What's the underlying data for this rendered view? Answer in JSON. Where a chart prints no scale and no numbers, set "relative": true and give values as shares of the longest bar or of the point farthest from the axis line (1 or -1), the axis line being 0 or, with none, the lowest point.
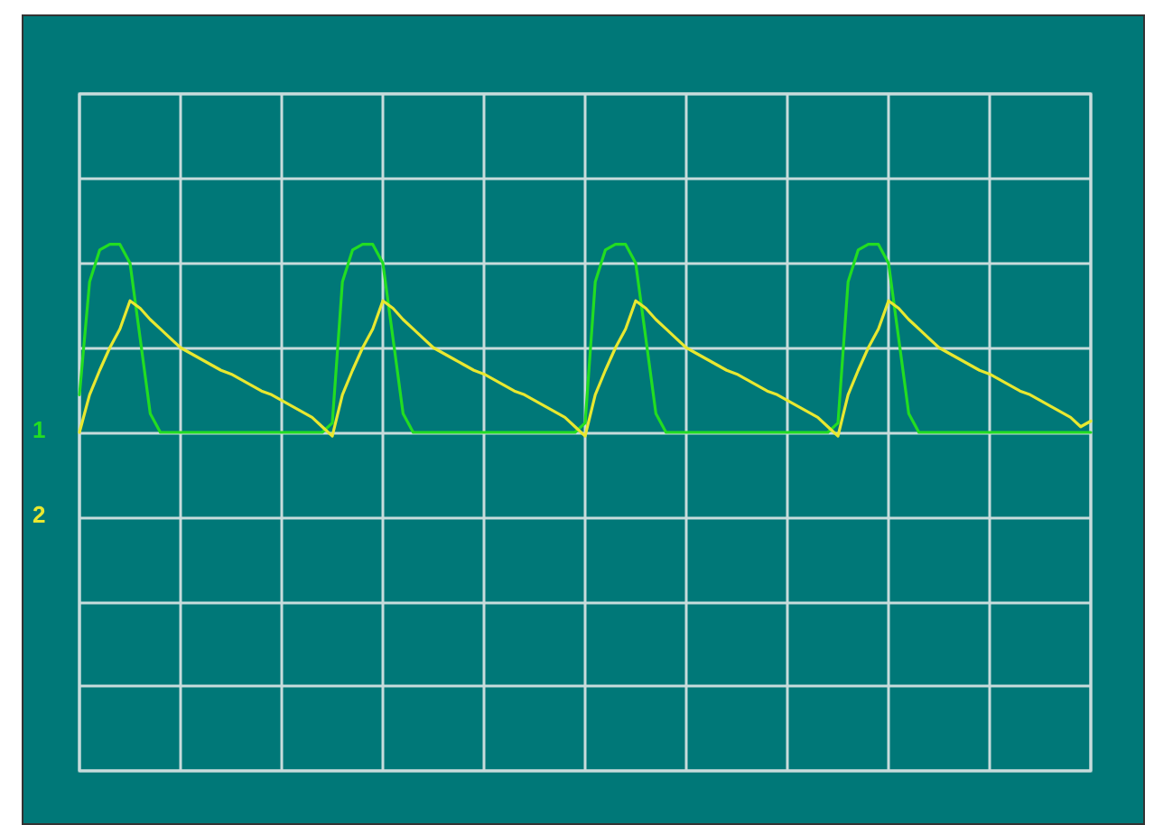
{
  "chart_data": {
    "type": "line",
    "relative": true,
    "grid": true,
    "legend": false,
    "line_style": "solid",
    "categories": [
      null,
      null,
      null,
      null,
      null,
      null,
      null,
      null,
      null,
      null,
      null,
      null,
      null,
      null,
      null,
      null,
      null,
      null,
      null,
      null,
      null,
      null,
      null,
      null,
      null,
      null,
      null,
      null,
      null,
      null,
      null,
      null,
      null,
      null,
      null,
      null,
      null,
      null,
      null,
      null,
      null,
      null,
      null,
      null,
      null,
      null,
      null,
      null,
      null,
      null,
      null,
      null,
      null,
      null,
      null,
      null,
      null,
      null,
      null,
      null,
      null,
      null,
      null,
      null,
      null,
      null,
      null,
      null,
      null,
      null,
      null,
      null,
      null,
      null,
      null,
      null,
      null,
      null,
      null,
      null,
      null,
      null,
      null,
      null,
      null,
      null,
      null,
      null,
      null,
      null,
      null,
      null,
      null,
      null,
      null,
      null,
      null,
      null,
      null,
      null,
      null
    ],
    "series": [
      {
        "name": "1",
        "color": "#22dd22",
        "values": [
          0.2,
          0.8,
          0.97,
          1,
          1,
          0.9,
          0.5,
          0.1,
          0,
          0,
          0,
          0,
          0,
          0,
          0,
          0,
          0,
          0,
          0,
          0,
          0,
          0,
          0,
          0,
          0,
          0.05,
          0.8,
          0.97,
          1,
          1,
          0.9,
          0.5,
          0.1,
          0,
          0,
          0,
          0,
          0,
          0,
          0,
          0,
          0,
          0,
          0,
          0,
          0,
          0,
          0,
          0,
          0,
          0.05,
          0.8,
          0.97,
          1,
          1,
          0.9,
          0.5,
          0.1,
          0,
          0,
          0,
          0,
          0,
          0,
          0,
          0,
          0,
          0,
          0,
          0,
          0,
          0,
          0,
          0,
          0,
          0.05,
          0.8,
          0.97,
          1,
          1,
          0.9,
          0.5,
          0.1,
          0,
          0,
          0,
          0,
          0,
          0,
          0,
          0,
          0,
          0,
          0,
          0,
          0,
          0,
          0,
          0,
          0,
          0
        ]
      },
      {
        "name": "2",
        "color": "#e8e830",
        "values": [
          0,
          0.2,
          0.33,
          0.45,
          0.55,
          0.7,
          0.66,
          0.6,
          0.55,
          0.5,
          0.45,
          0.42,
          0.39,
          0.36,
          0.33,
          0.31,
          0.28,
          0.25,
          0.22,
          0.2,
          0.17,
          0.14,
          0.11,
          0.08,
          0.03,
          -0.02,
          0.2,
          0.33,
          0.45,
          0.55,
          0.7,
          0.66,
          0.6,
          0.55,
          0.5,
          0.45,
          0.42,
          0.39,
          0.36,
          0.33,
          0.31,
          0.28,
          0.25,
          0.22,
          0.2,
          0.17,
          0.14,
          0.11,
          0.08,
          0.03,
          -0.02,
          0.2,
          0.33,
          0.45,
          0.55,
          0.7,
          0.66,
          0.6,
          0.55,
          0.5,
          0.45,
          0.42,
          0.39,
          0.36,
          0.33,
          0.31,
          0.28,
          0.25,
          0.22,
          0.2,
          0.17,
          0.14,
          0.11,
          0.08,
          0.03,
          -0.02,
          0.2,
          0.33,
          0.45,
          0.55,
          0.7,
          0.66,
          0.6,
          0.55,
          0.5,
          0.45,
          0.42,
          0.39,
          0.36,
          0.33,
          0.31,
          0.28,
          0.25,
          0.22,
          0.2,
          0.17,
          0.14,
          0.11,
          0.08,
          0.03,
          0.06
        ]
      }
    ]
  }
}
